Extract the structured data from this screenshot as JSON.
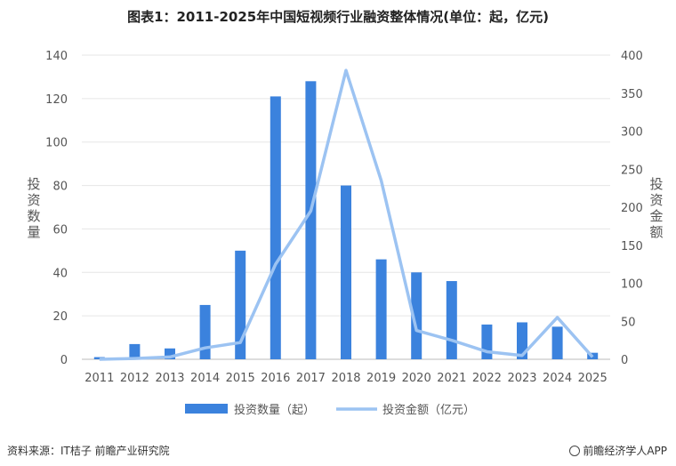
{
  "chart_data": {
    "type": "bar+line",
    "title": "图表1：2011-2025年中国短视频行业融资整体情况(单位：起，亿元)",
    "categories": [
      "2011",
      "2012",
      "2013",
      "2014",
      "2015",
      "2016",
      "2017",
      "2018",
      "2019",
      "2020",
      "2021",
      "2022",
      "2023",
      "2024",
      "2025"
    ],
    "series": [
      {
        "name": "投资数量（起）",
        "kind": "bar",
        "axis": "left",
        "color": "#3b82dd",
        "values": [
          1,
          7,
          5,
          25,
          50,
          121,
          128,
          80,
          46,
          40,
          36,
          16,
          17,
          15,
          3
        ]
      },
      {
        "name": "投资金额（亿元）",
        "kind": "line",
        "axis": "right",
        "color": "#9cc3f2",
        "values": [
          0,
          1,
          3,
          15,
          22,
          125,
          195,
          380,
          235,
          38,
          25,
          10,
          5,
          55,
          3
        ]
      }
    ],
    "ylabel_left": "投资数量",
    "ylabel_right": "投资金额",
    "ylim_left": [
      0,
      140
    ],
    "yticks_left": [
      0,
      20,
      40,
      60,
      80,
      100,
      120,
      140
    ],
    "ylim_right": [
      0,
      400
    ],
    "yticks_right": [
      0,
      50,
      100,
      150,
      200,
      250,
      300,
      350,
      400
    ],
    "grid": true,
    "legend_position": "bottom"
  },
  "footer": {
    "source": "资料来源：IT桔子 前瞻产业研究院",
    "brand": "前瞻经济学人APP"
  }
}
